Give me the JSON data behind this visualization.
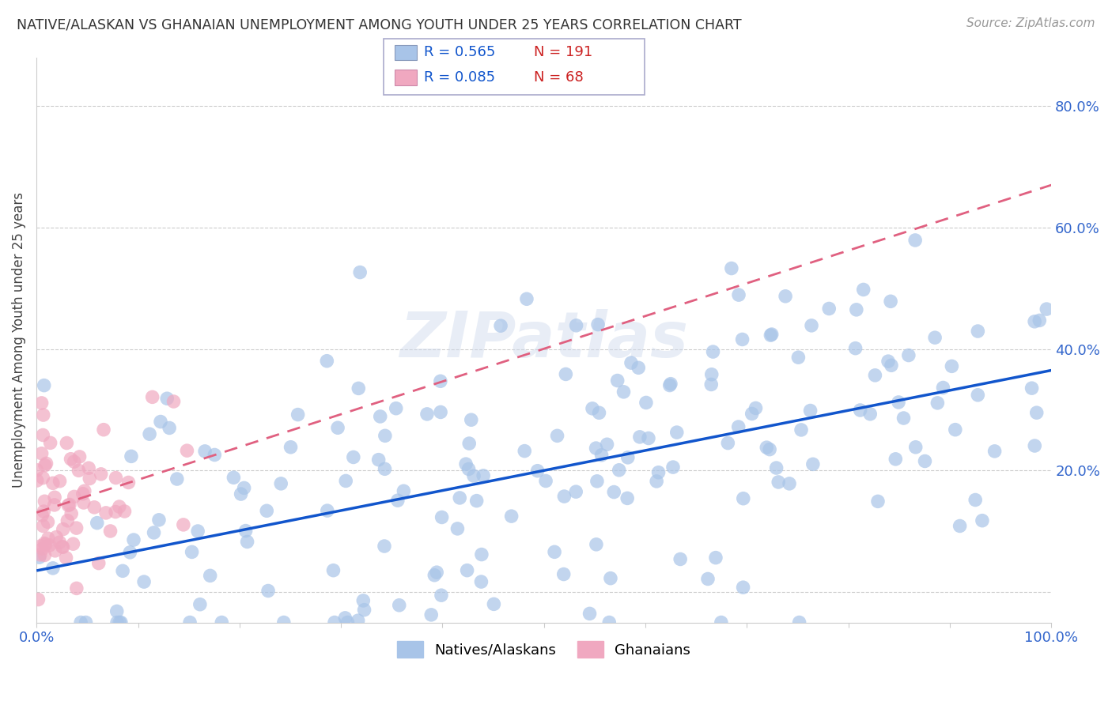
{
  "title": "NATIVE/ALASKAN VS GHANAIAN UNEMPLOYMENT AMONG YOUTH UNDER 25 YEARS CORRELATION CHART",
  "source": "Source: ZipAtlas.com",
  "ylabel": "Unemployment Among Youth under 25 years",
  "xlim": [
    0.0,
    1.0
  ],
  "ylim": [
    -0.05,
    0.88
  ],
  "xtick_positions": [
    0.0,
    0.1,
    0.2,
    0.3,
    0.4,
    0.5,
    0.6,
    0.7,
    0.8,
    0.9,
    1.0
  ],
  "xticklabels": [
    "0.0%",
    "",
    "",
    "",
    "",
    "",
    "",
    "",
    "",
    "",
    "100.0%"
  ],
  "ytick_positions": [
    0.0,
    0.2,
    0.4,
    0.6,
    0.8
  ],
  "yticklabels_right": [
    "",
    "20.0%",
    "40.0%",
    "60.0%",
    "80.0%"
  ],
  "native_R": 0.565,
  "native_N": 191,
  "ghanaian_R": 0.085,
  "ghanaian_N": 68,
  "native_color": "#a8c4e8",
  "ghanaian_color": "#f0a8c0",
  "native_line_color": "#1155cc",
  "ghanaian_line_color": "#e06080",
  "legend_R_color": "#1155cc",
  "legend_N_color": "#cc2222",
  "background_color": "#ffffff",
  "watermark_text": "ZIPatlas",
  "native_seed": 123,
  "ghanaian_seed": 456
}
